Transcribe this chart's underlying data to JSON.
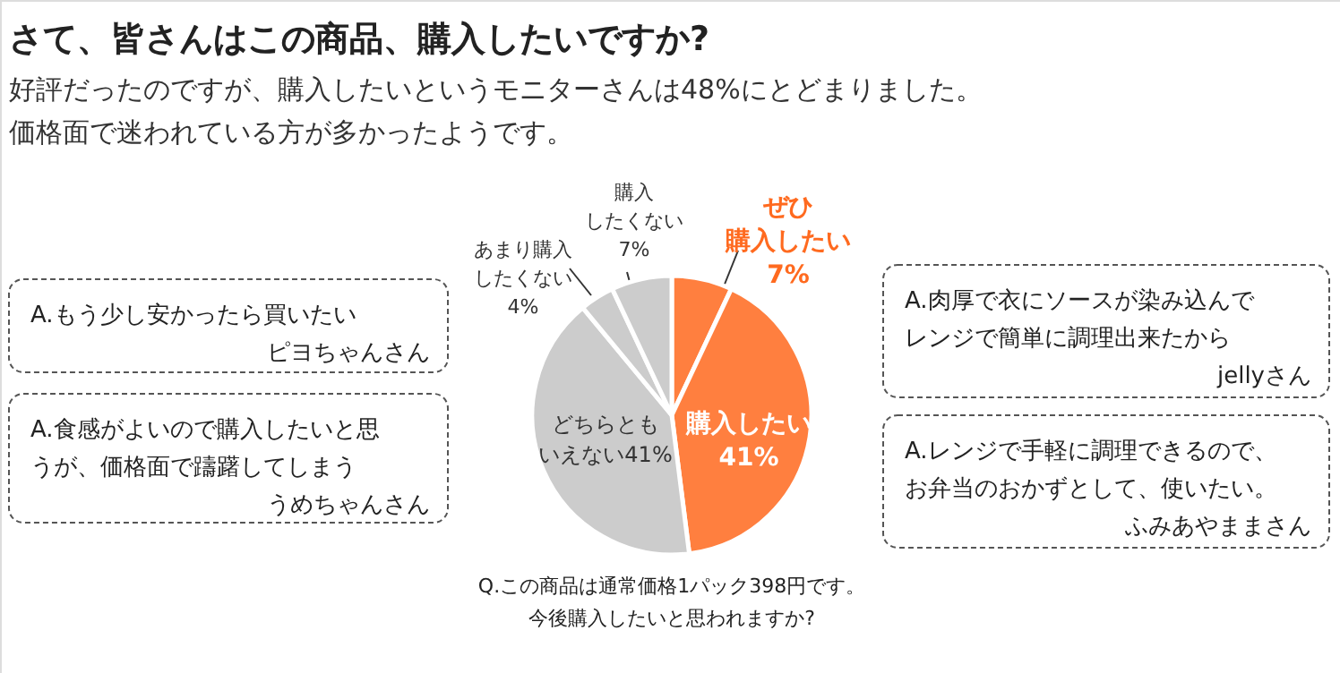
{
  "chart_data": {
    "type": "pie",
    "title": "さて、皆さんはこの商品、購入したいですか?",
    "subtitle": "好評だったのですが、購入したいというモニターさんは48%にとどまりました。価格面で迷われている方が多かったようです。",
    "categories": [
      "ぜひ購入したい",
      "購入したい",
      "どちらともいえない",
      "あまり購入したくない",
      "購入したくない"
    ],
    "values": [
      7,
      41,
      41,
      4,
      7
    ],
    "value_labels": [
      "7%",
      "41%",
      "41%",
      "4%",
      "7%"
    ],
    "colors": [
      "#ff7f3f",
      "#ff7f3f",
      "#cccccc",
      "#cccccc",
      "#cccccc"
    ],
    "annotations": [
      "A.もう少し安かったら買いたい",
      "ピヨちゃんさん",
      "A.食感がよいので購入したいと思うが、価格面で躊躇してしまう",
      "うめちゃんさん",
      "A.肉厚で衣にソースが染み込んでレンジで簡単に調理出来たから",
      "jellyさん",
      "A.レンジで手軽に調理できるので、お弁当のおかずとして、使いたい。",
      "ふみあやままさん",
      "Q.この商品は通常価格1パック398円です。今後購入したいと思われますか?"
    ]
  }
}
